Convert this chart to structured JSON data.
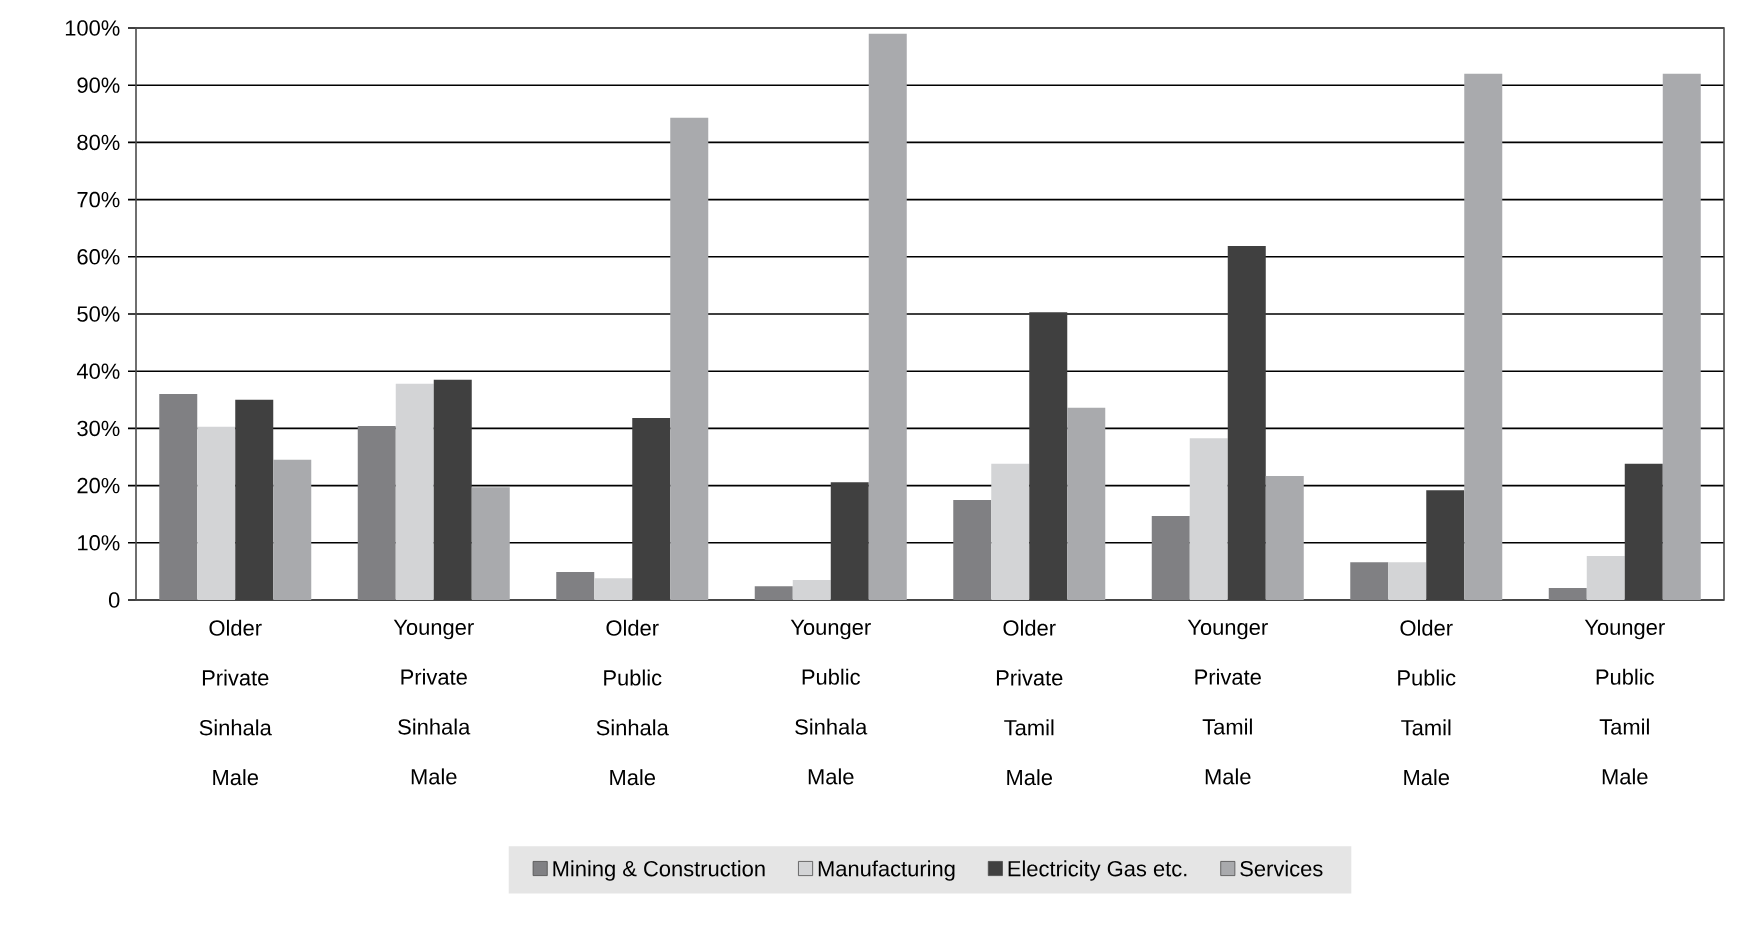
{
  "chart_data": {
    "type": "bar",
    "categories": [
      "Older Private Sinhala Male",
      "Younger Private Sinhala Male",
      "Older Public Sinhala Male",
      "Younger Public Sinhala Male",
      "Older Private Tamil Male",
      "Younger Private Tamil Male",
      "Older Public Tamil Male",
      "Younger Public Tamil Male"
    ],
    "series": [
      {
        "name": "Mining & Construction",
        "color": "#808083",
        "values": [
          36.0,
          30.4,
          4.9,
          2.4,
          17.5,
          14.7,
          6.6,
          2.1
        ]
      },
      {
        "name": "Manufacturing",
        "color": "#d3d4d6",
        "values": [
          30.3,
          37.8,
          3.8,
          3.5,
          23.8,
          28.3,
          6.6,
          7.7
        ]
      },
      {
        "name": "Electricity Gas etc.",
        "color": "#404040",
        "values": [
          35.0,
          38.5,
          31.8,
          20.6,
          50.3,
          61.9,
          19.2,
          23.8
        ]
      },
      {
        "name": "Services",
        "color": "#a9aaad",
        "values": [
          24.5,
          19.7,
          84.3,
          99.0,
          33.6,
          21.7,
          92.0,
          92.0
        ]
      }
    ],
    "ylim": [
      0,
      100
    ],
    "yticks": [
      0,
      {
        "value": 10,
        "label": "10%"
      },
      {
        "value": 20,
        "label": "20%"
      },
      {
        "value": 30,
        "label": "30%"
      },
      {
        "value": 40,
        "label": "40%"
      },
      {
        "value": 50,
        "label": "50%"
      },
      {
        "value": 60,
        "label": "60%"
      },
      {
        "value": 70,
        "label": "70%"
      },
      {
        "value": 80,
        "label": "80%"
      },
      {
        "value": 90,
        "label": "90%"
      },
      {
        "value": 100,
        "label": "100%"
      }
    ],
    "grid": "y",
    "legend": "bottom"
  }
}
